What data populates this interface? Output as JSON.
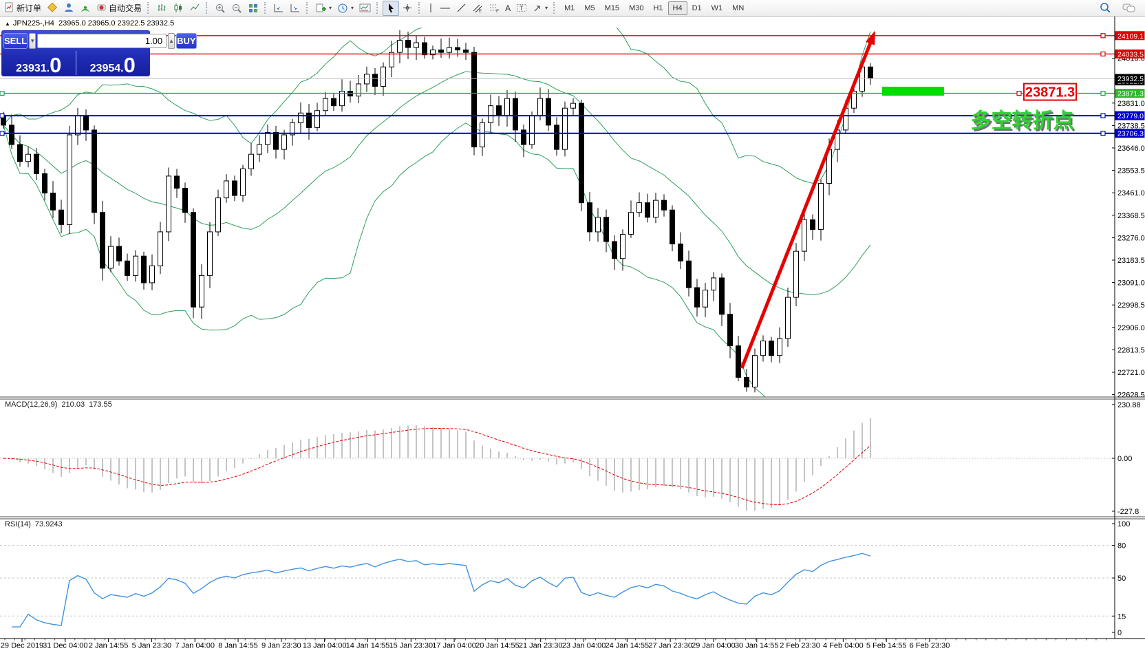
{
  "toolbar": {
    "new_order": "新订单",
    "auto_trading": "自动交易",
    "timeframes": [
      "M1",
      "M5",
      "M15",
      "M30",
      "H1",
      "H4",
      "D1",
      "W1",
      "MN"
    ],
    "active_timeframe": "H4"
  },
  "header": {
    "collapse_marker": "▲",
    "symbol": "JPN225-,H4",
    "ohlc": "23965.0 23965.0 23922.5 23932.5"
  },
  "trade_panel": {
    "sell_label": "SELL",
    "buy_label": "BUY",
    "volume": "1.00",
    "sell_price": "23931",
    "sell_pips": "0",
    "buy_price": "23954",
    "buy_pips": "0"
  },
  "macd": {
    "label": "MACD(12,26,9)",
    "value_main": "210.03",
    "value_signal": "173.55",
    "scale": [
      "230.88",
      "0.00",
      "-227.8"
    ]
  },
  "rsi": {
    "label": "RSI(14)",
    "value": "73.9243",
    "scale": [
      "100",
      "80",
      "50",
      "15",
      "0"
    ],
    "dashed_levels": [
      80,
      50,
      15
    ]
  },
  "annotations": {
    "pivot_text": "多空转折点",
    "pivot_color": "#2fd32f",
    "price_tag": "23871.3",
    "price_tag_color": "#e80000",
    "highlight_color": "#00dd00",
    "arrow_color": "#e60000"
  },
  "price_axis": {
    "plain_ticks": [
      24016.0,
      23831.0,
      23738.5,
      23646.0,
      23553.5,
      23461.0,
      23368.5,
      23276.0,
      23183.5,
      23091.0,
      22998.5,
      22906.0,
      22813.5,
      22721.0,
      22628.5
    ],
    "tagged": [
      {
        "text": "24109.1",
        "price": 24109.1,
        "bg": "#e00000"
      },
      {
        "text": "24033.5",
        "price": 24033.5,
        "bg": "#e00000"
      },
      {
        "text": "23922.5",
        "price": 23922.5,
        "bg": "#000000"
      },
      {
        "text": "23932.5",
        "price": 23932.5,
        "bg": "#000000"
      },
      {
        "text": "23871.3",
        "price": 23871.3,
        "bg": "#2eb82e"
      },
      {
        "text": "23779.0",
        "price": 23779.0,
        "bg": "#0000cc"
      },
      {
        "text": "23706.3",
        "price": 23706.3,
        "bg": "#0000cc"
      }
    ]
  },
  "time_axis": {
    "labels": [
      "29 Dec 2019",
      "31 Dec 04:00",
      "2 Jan 14:55",
      "5 Jan 23:30",
      "7 Jan 04:00",
      "8 Jan 14:55",
      "9 Jan 23:30",
      "13 Jan 04:00",
      "14 Jan 14:55",
      "15 Jan 23:30",
      "17 Jan 04:00",
      "20 Jan 14:55",
      "21 Jan 23:30",
      "23 Jan 04:00",
      "24 Jan 14:55",
      "27 Jan 23:30",
      "29 Jan 04:00",
      "30 Jan 14:55",
      "2 Feb 23:30",
      "4 Feb 04:00",
      "5 Feb 14:55",
      "6 Feb 23:30"
    ]
  },
  "chart_data": {
    "type": "candlestick",
    "symbol": "JPN225-",
    "timeframe": "H4",
    "ohlc_header": {
      "open": "23965.0",
      "high": "23965.0",
      "low": "23922.5",
      "close": "23932.5"
    },
    "hlines": [
      {
        "price": 24109.1,
        "color": "#e00000",
        "w": 1.4,
        "left_anchor": false,
        "right_anchor": true
      },
      {
        "price": 24033.5,
        "color": "#e00000",
        "w": 1.4,
        "left_anchor": false,
        "right_anchor": true
      },
      {
        "price": 23932.5,
        "color": "#b8b8b8",
        "w": 1,
        "left_anchor": false,
        "right_anchor": false
      },
      {
        "price": 23871.3,
        "color": "#00b33c",
        "w": 1.4,
        "left_anchor": true,
        "right_anchor": true
      },
      {
        "price": 23779.0,
        "color": "#0000cc",
        "w": 2,
        "left_anchor": true,
        "right_anchor": true
      },
      {
        "price": 23706.3,
        "color": "#0000cc",
        "w": 2,
        "left_anchor": true,
        "right_anchor": true
      }
    ],
    "closes": [
      23740,
      23660,
      23590,
      23620,
      23540,
      23460,
      23390,
      23330,
      23700,
      23780,
      23720,
      23380,
      23150,
      23240,
      23180,
      23120,
      23200,
      23090,
      23160,
      23300,
      23530,
      23480,
      23380,
      22990,
      23120,
      23300,
      23440,
      23510,
      23450,
      23560,
      23620,
      23660,
      23710,
      23640,
      23700,
      23750,
      23790,
      23730,
      23800,
      23850,
      23820,
      23880,
      23860,
      23910,
      23950,
      23900,
      23980,
      24040,
      24090,
      24060,
      24080,
      24030,
      24050,
      24040,
      24060,
      24050,
      24040,
      23650,
      23750,
      23820,
      23780,
      23850,
      23720,
      23660,
      23780,
      23850,
      23740,
      23640,
      23810,
      23830,
      23420,
      23300,
      23360,
      23260,
      23190,
      23290,
      23380,
      23420,
      23360,
      23430,
      23390,
      23250,
      23180,
      23070,
      22990,
      23060,
      23110,
      22960,
      22830,
      22700,
      22660,
      22790,
      22850,
      22790,
      22860,
      23030,
      23220,
      23350,
      23310,
      23500,
      23640,
      23720,
      23810,
      23880,
      23980,
      23932.5
    ]
  }
}
